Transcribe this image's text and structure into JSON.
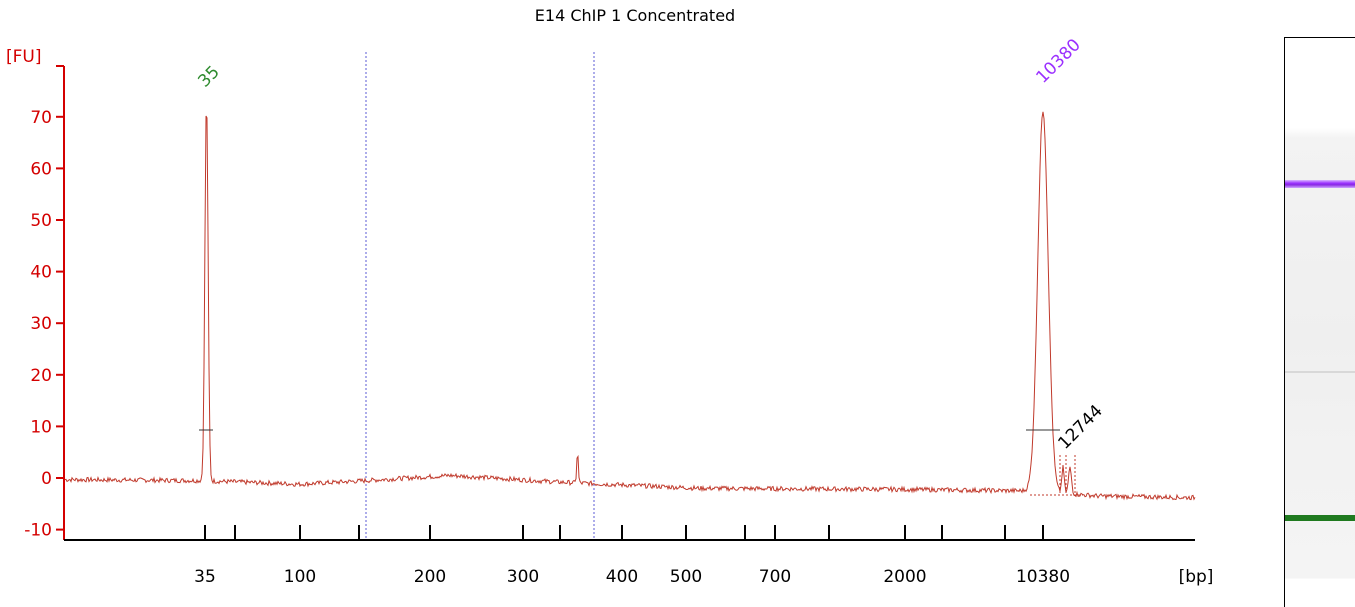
{
  "chart_data": {
    "type": "line",
    "title": "E14 ChIP 1 Concentrated",
    "ylabel": "[FU]",
    "xlabel": "[bp]",
    "ylim": [
      -12,
      78
    ],
    "yticks": [
      -10,
      0,
      10,
      20,
      30,
      40,
      50,
      60,
      70
    ],
    "xtick_labels": [
      "35",
      "100",
      "200",
      "300",
      "400",
      "500",
      "700",
      "2000",
      "10380"
    ],
    "peak_labels": [
      {
        "label": "35",
        "size_bp": 35,
        "height": 74,
        "color": "#2e8b2e"
      },
      {
        "label": "10380",
        "size_bp": 10380,
        "height": 74,
        "color": "#9b30ff"
      },
      {
        "label": "12744",
        "size_bp": 12744,
        "height": 3,
        "color": "#000000"
      }
    ],
    "region_markers_bp": [
      "150",
      "380"
    ],
    "colors": {
      "trace": "#c0392b",
      "axis": "#d40000",
      "lower_marker": "#1f7a1f",
      "upper_marker": "#9b30ff"
    }
  },
  "gel": {
    "lower_marker_color": "#1f7a1f",
    "upper_marker_color": "#9b30ff"
  }
}
